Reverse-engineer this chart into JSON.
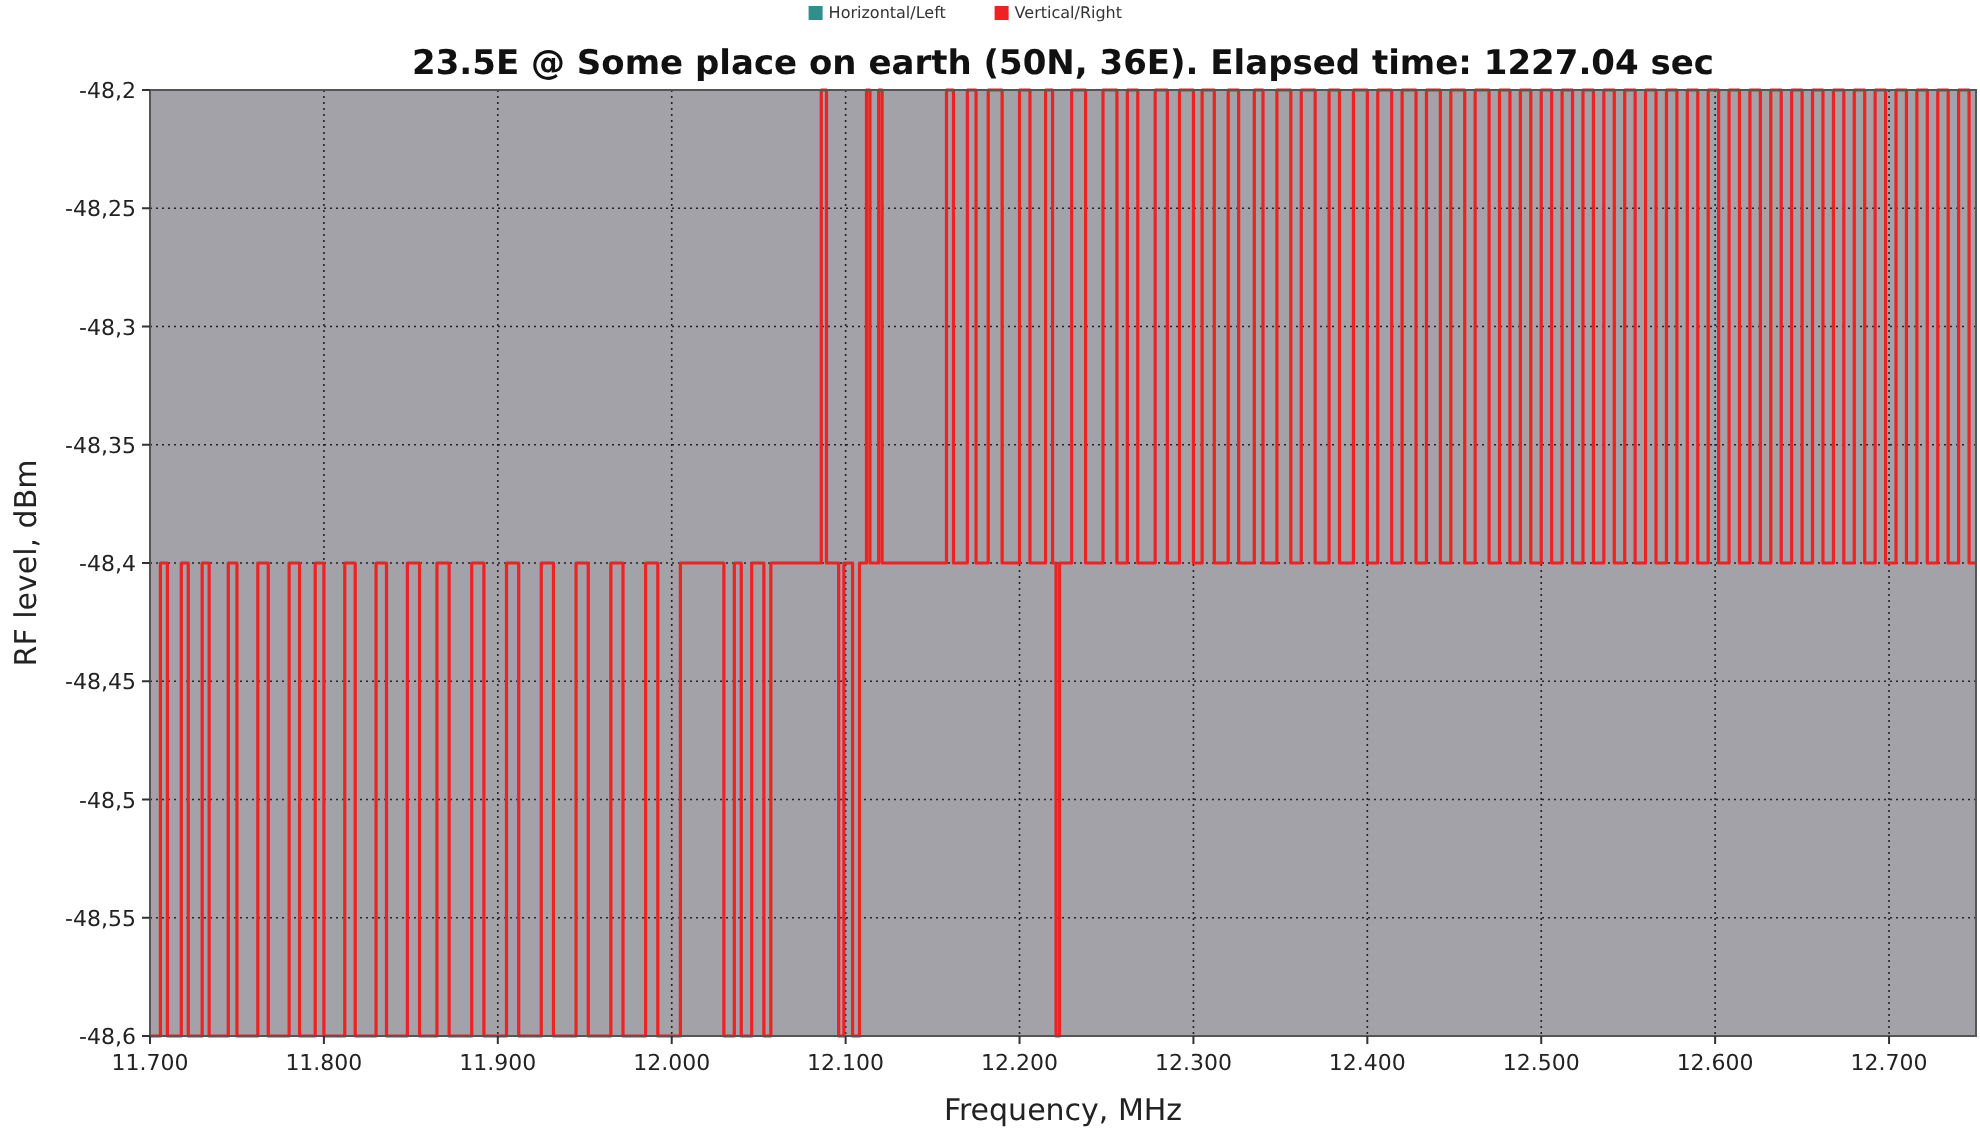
{
  "chart_data": {
    "type": "step",
    "title": "23.5E @ Some place on earth (50N, 36E). Elapsed time: 1227.04 sec",
    "xlabel": "Frequency, MHz",
    "ylabel": "RF level, dBm",
    "xlim": [
      11700,
      12750
    ],
    "ylim": [
      -48.6,
      -48.2
    ],
    "xticks": [
      {
        "value": 11700,
        "label": "11.700"
      },
      {
        "value": 11800,
        "label": "11.800"
      },
      {
        "value": 11900,
        "label": "11.900"
      },
      {
        "value": 12000,
        "label": "12.000"
      },
      {
        "value": 12100,
        "label": "12.100"
      },
      {
        "value": 12200,
        "label": "12.200"
      },
      {
        "value": 12300,
        "label": "12.300"
      },
      {
        "value": 12400,
        "label": "12.400"
      },
      {
        "value": 12500,
        "label": "12.500"
      },
      {
        "value": 12600,
        "label": "12.600"
      },
      {
        "value": 12700,
        "label": "12.700"
      }
    ],
    "yticks": [
      {
        "value": -48.2,
        "label": "-48,2"
      },
      {
        "value": -48.25,
        "label": "-48,25"
      },
      {
        "value": -48.3,
        "label": "-48,3"
      },
      {
        "value": -48.35,
        "label": "-48,35"
      },
      {
        "value": -48.4,
        "label": "-48,4"
      },
      {
        "value": -48.45,
        "label": "-48,45"
      },
      {
        "value": -48.5,
        "label": "-48,5"
      },
      {
        "value": -48.55,
        "label": "-48,55"
      },
      {
        "value": -48.6,
        "label": "-48,6"
      }
    ],
    "grid": true,
    "legend": "top",
    "line_style": "solid",
    "marker": "none",
    "series": [
      {
        "name": "Horizontal/Left",
        "color": "#2f8f8a"
      },
      {
        "name": "Vertical/Right",
        "color": "#ee2222",
        "x": [
          11700,
          11706,
          11710,
          11718,
          11722,
          11730,
          11734,
          11745,
          11750,
          11762,
          11768,
          11780,
          11786,
          11795,
          11800,
          11812,
          11818,
          11830,
          11836,
          11848,
          11855,
          11865,
          11872,
          11885,
          11892,
          11905,
          11912,
          11925,
          11932,
          11945,
          11952,
          11965,
          11972,
          11985,
          11992,
          12005,
          12030,
          12036,
          12040,
          12046,
          12053,
          12057,
          12086,
          12089,
          12096,
          12099,
          12104,
          12108,
          12112,
          12114,
          12119,
          12121,
          12158,
          12162,
          12170,
          12175,
          12182,
          12190,
          12200,
          12206,
          12215,
          12219,
          12221,
          12223,
          12230,
          12238,
          12248,
          12256,
          12262,
          12268,
          12278,
          12285,
          12292,
          12300,
          12305,
          12312,
          12320,
          12326,
          12335,
          12340,
          12348,
          12356,
          12362,
          12370,
          12378,
          12384,
          12392,
          12400,
          12406,
          12414,
          12420,
          12428,
          12434,
          12442,
          12448,
          12456,
          12462,
          12470,
          12476,
          12482,
          12488,
          12494,
          12500,
          12506,
          12512,
          12518,
          12524,
          12530,
          12536,
          12542,
          12548,
          12554,
          12560,
          12566,
          12572,
          12578,
          12584,
          12590,
          12596,
          12602,
          12608,
          12614,
          12620,
          12626,
          12632,
          12638,
          12644,
          12650,
          12656,
          12662,
          12668,
          12674,
          12680,
          12686,
          12692,
          12698,
          12704,
          12710,
          12716,
          12722,
          12728,
          12734,
          12740,
          12746,
          12750
        ],
        "values": [
          -48.6,
          -48.4,
          -48.6,
          -48.4,
          -48.6,
          -48.4,
          -48.6,
          -48.4,
          -48.6,
          -48.4,
          -48.6,
          -48.4,
          -48.6,
          -48.4,
          -48.6,
          -48.4,
          -48.6,
          -48.4,
          -48.6,
          -48.4,
          -48.6,
          -48.4,
          -48.6,
          -48.4,
          -48.6,
          -48.4,
          -48.6,
          -48.4,
          -48.6,
          -48.4,
          -48.6,
          -48.4,
          -48.6,
          -48.4,
          -48.6,
          -48.4,
          -48.6,
          -48.4,
          -48.6,
          -48.4,
          -48.6,
          -48.4,
          -48.2,
          -48.4,
          -48.6,
          -48.4,
          -48.6,
          -48.4,
          -48.2,
          -48.4,
          -48.2,
          -48.4,
          -48.2,
          -48.4,
          -48.2,
          -48.4,
          -48.2,
          -48.4,
          -48.2,
          -48.4,
          -48.2,
          -48.4,
          -48.6,
          -48.4,
          -48.2,
          -48.4,
          -48.2,
          -48.4,
          -48.2,
          -48.4,
          -48.2,
          -48.4,
          -48.2,
          -48.4,
          -48.2,
          -48.4,
          -48.2,
          -48.4,
          -48.2,
          -48.4,
          -48.2,
          -48.4,
          -48.2,
          -48.4,
          -48.2,
          -48.4,
          -48.2,
          -48.4,
          -48.2,
          -48.4,
          -48.2,
          -48.4,
          -48.2,
          -48.4,
          -48.2,
          -48.4,
          -48.2,
          -48.4,
          -48.2,
          -48.4,
          -48.2,
          -48.4,
          -48.2,
          -48.4,
          -48.2,
          -48.4,
          -48.2,
          -48.4,
          -48.2,
          -48.4,
          -48.2,
          -48.4,
          -48.2,
          -48.4,
          -48.2,
          -48.4,
          -48.2,
          -48.4,
          -48.2,
          -48.4,
          -48.2,
          -48.4,
          -48.2,
          -48.4,
          -48.2,
          -48.4,
          -48.2,
          -48.4,
          -48.2,
          -48.4,
          -48.2,
          -48.4,
          -48.2,
          -48.4,
          -48.2,
          -48.4,
          -48.2,
          -48.4,
          -48.2,
          -48.4,
          -48.2,
          -48.4,
          -48.2,
          -48.4,
          -48.4
        ]
      }
    ]
  }
}
